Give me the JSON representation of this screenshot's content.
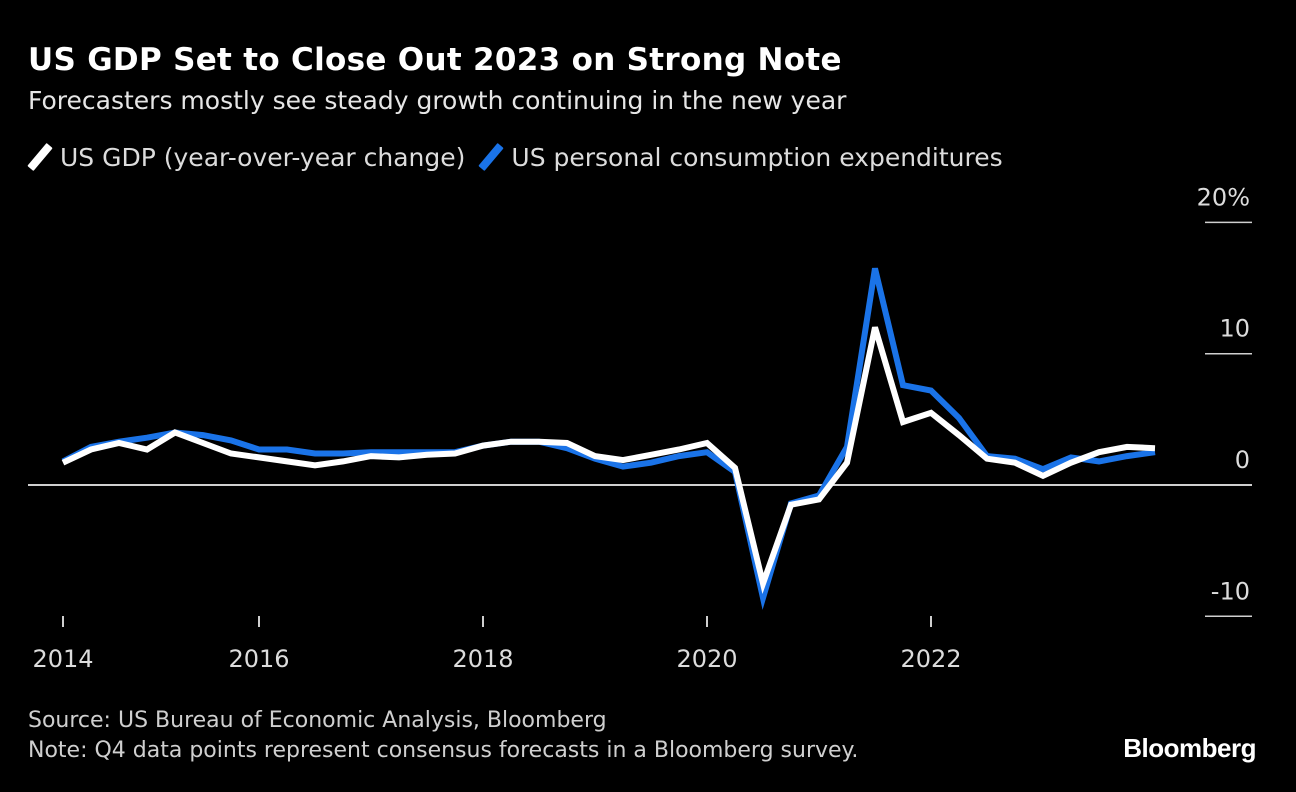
{
  "title": "US GDP Set to Close Out 2023 on Strong Note",
  "subtitle": "Forecasters mostly see steady growth continuing in the new year",
  "source": "Source: US Bureau of Economic Analysis, Bloomberg",
  "note": "Note: Q4 data points represent consensus forecasts in a Bloomberg survey.",
  "logo": "Bloomberg",
  "colors": {
    "gdp": "#ffffff",
    "pce": "#1a73e8",
    "background": "#000000"
  },
  "chart_data": {
    "type": "line",
    "title": "US GDP Set to Close Out 2023 on Strong Note",
    "x": [
      "2014 Q1",
      "2014 Q2",
      "2014 Q3",
      "2014 Q4",
      "2015 Q1",
      "2015 Q2",
      "2015 Q3",
      "2015 Q4",
      "2016 Q1",
      "2016 Q2",
      "2016 Q3",
      "2016 Q4",
      "2017 Q1",
      "2017 Q2",
      "2017 Q3",
      "2017 Q4",
      "2018 Q1",
      "2018 Q2",
      "2018 Q3",
      "2018 Q4",
      "2019 Q1",
      "2019 Q2",
      "2019 Q3",
      "2019 Q4",
      "2020 Q1",
      "2020 Q2",
      "2020 Q3",
      "2020 Q4",
      "2021 Q1",
      "2021 Q2",
      "2021 Q3",
      "2021 Q4",
      "2022 Q1",
      "2022 Q2",
      "2022 Q3",
      "2022 Q4",
      "2023 Q1",
      "2023 Q2",
      "2023 Q3",
      "2023 Q4"
    ],
    "series": [
      {
        "name": "US GDP (year-over-year change)",
        "color": "#ffffff",
        "values": [
          1.7,
          2.7,
          3.2,
          2.7,
          4.0,
          3.2,
          2.4,
          2.1,
          1.8,
          1.5,
          1.8,
          2.2,
          2.1,
          2.3,
          2.4,
          3.0,
          3.3,
          3.3,
          3.2,
          2.2,
          1.9,
          2.3,
          2.7,
          3.2,
          1.3,
          -7.5,
          -1.5,
          -1.1,
          1.7,
          12.0,
          4.8,
          5.5,
          3.8,
          2.0,
          1.7,
          0.7,
          1.7,
          2.5,
          2.9,
          2.8
        ]
      },
      {
        "name": "US personal consumption expenditures",
        "color": "#1a73e8",
        "values": [
          1.8,
          2.9,
          3.3,
          3.6,
          4.0,
          3.8,
          3.4,
          2.7,
          2.7,
          2.4,
          2.4,
          2.5,
          2.5,
          2.5,
          2.5,
          3.0,
          3.3,
          3.3,
          2.8,
          2.0,
          1.4,
          1.7,
          2.2,
          2.5,
          1.0,
          -8.6,
          -1.4,
          -0.8,
          2.9,
          16.5,
          7.6,
          7.2,
          5.1,
          2.2,
          2.0,
          1.2,
          2.1,
          1.8,
          2.2,
          2.5
        ]
      }
    ],
    "x_ticks": [
      {
        "t": 2014.25,
        "label": "2014"
      },
      {
        "t": 2016,
        "label": "2016"
      },
      {
        "t": 2018,
        "label": "2018"
      },
      {
        "t": 2020,
        "label": "2020"
      },
      {
        "t": 2022,
        "label": "2022"
      }
    ],
    "y_ticks": [
      {
        "v": 20,
        "label": "20%"
      },
      {
        "v": 10,
        "label": "10"
      },
      {
        "v": 0,
        "label": "0"
      },
      {
        "v": -10,
        "label": "-10"
      }
    ],
    "ylim": [
      -10,
      20
    ],
    "legend_position": "top-left",
    "grid": false
  }
}
